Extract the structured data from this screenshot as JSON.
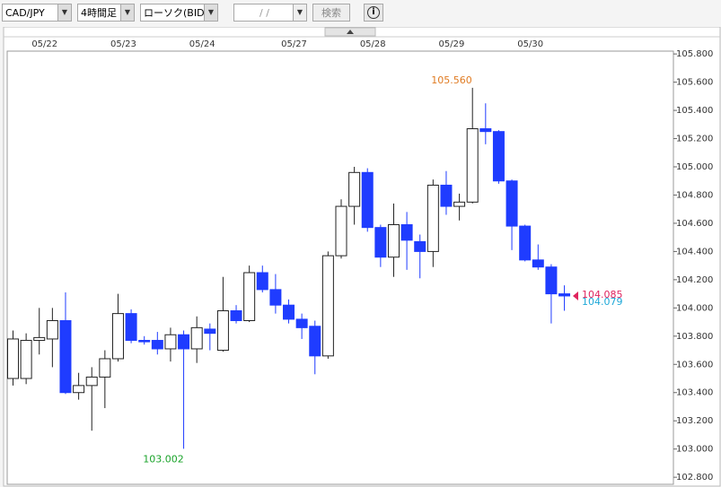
{
  "toolbar": {
    "pair": "CAD/JPY",
    "interval": "4時間足",
    "chart_kind": "ローソク(BID)",
    "date": "/  /",
    "search": "検索"
  },
  "chart_data": {
    "type": "candlestick",
    "categories": [
      null,
      null,
      "05/22",
      null,
      null,
      null,
      null,
      null,
      "05/23",
      null,
      null,
      null,
      null,
      null,
      "05/24",
      null,
      null,
      null,
      null,
      null,
      null,
      "05/27",
      null,
      null,
      null,
      null,
      null,
      "05/28",
      null,
      null,
      null,
      null,
      null,
      "05/29",
      null,
      null,
      null,
      null,
      null,
      "05/30",
      null,
      null,
      null
    ],
    "open": [
      103.5,
      103.5,
      103.77,
      103.78,
      103.91,
      103.4,
      103.45,
      103.51,
      103.64,
      103.96,
      103.77,
      103.77,
      103.71,
      103.81,
      103.71,
      103.85,
      103.7,
      103.98,
      103.91,
      104.25,
      104.13,
      104.02,
      103.92,
      103.87,
      103.66,
      104.37,
      104.72,
      104.96,
      104.57,
      104.36,
      104.59,
      104.47,
      104.4,
      104.87,
      104.72,
      104.75,
      105.27,
      105.25,
      104.9,
      104.58,
      104.34,
      104.29,
      104.1
    ],
    "high": [
      103.84,
      103.82,
      104.0,
      104.0,
      104.11,
      103.54,
      103.58,
      103.7,
      104.1,
      103.99,
      103.8,
      103.83,
      103.86,
      103.84,
      103.94,
      103.89,
      104.22,
      104.02,
      104.3,
      104.3,
      104.24,
      104.06,
      103.96,
      103.91,
      104.4,
      104.77,
      105.0,
      104.99,
      104.59,
      104.74,
      104.68,
      104.52,
      104.91,
      104.97,
      104.81,
      105.56,
      105.45,
      105.26,
      104.91,
      104.59,
      104.45,
      104.31,
      104.16
    ],
    "low": [
      103.45,
      103.46,
      103.67,
      103.58,
      103.39,
      103.35,
      103.13,
      103.29,
      103.62,
      103.75,
      103.74,
      103.67,
      103.62,
      103.002,
      103.61,
      103.7,
      103.69,
      103.89,
      103.9,
      104.11,
      103.96,
      103.89,
      103.78,
      103.53,
      103.64,
      104.35,
      104.59,
      104.54,
      104.29,
      104.22,
      104.27,
      104.21,
      104.29,
      104.66,
      104.62,
      104.74,
      105.16,
      104.88,
      104.41,
      104.33,
      104.27,
      103.89,
      103.98
    ],
    "close": [
      103.78,
      103.77,
      103.79,
      103.91,
      103.4,
      103.45,
      103.51,
      103.64,
      103.96,
      103.77,
      103.76,
      103.71,
      103.81,
      103.71,
      103.86,
      103.82,
      103.98,
      103.91,
      104.25,
      104.13,
      104.02,
      103.92,
      103.86,
      103.66,
      104.37,
      104.72,
      104.96,
      104.57,
      104.36,
      104.59,
      104.48,
      104.4,
      104.87,
      104.72,
      104.75,
      105.27,
      105.25,
      104.9,
      104.58,
      104.34,
      104.29,
      104.1,
      104.085
    ],
    "up_color": "#ffffff",
    "down_color": "#1f3cff",
    "ylim": [
      102.75,
      105.82
    ],
    "yticks": [
      {
        "value": 105.8,
        "label": "105.800"
      },
      {
        "value": 105.6,
        "label": "105.600"
      },
      {
        "value": 105.4,
        "label": "105.400"
      },
      {
        "value": 105.2,
        "label": "105.200"
      },
      {
        "value": 105.0,
        "label": "105.000"
      },
      {
        "value": 104.8,
        "label": "104.800"
      },
      {
        "value": 104.6,
        "label": "104.600"
      },
      {
        "value": 104.4,
        "label": "104.400"
      },
      {
        "value": 104.2,
        "label": "104.200"
      },
      {
        "value": 104.0,
        "label": "104.000"
      },
      {
        "value": 103.8,
        "label": "103.800"
      },
      {
        "value": 103.6,
        "label": "103.600"
      },
      {
        "value": 103.4,
        "label": "103.400"
      },
      {
        "value": 103.2,
        "label": "103.200"
      },
      {
        "value": 103.0,
        "label": "103.000"
      },
      {
        "value": 102.8,
        "label": "102.800"
      }
    ],
    "grid": false,
    "annotations": [
      {
        "value": 105.56,
        "label": "105.560",
        "color": "#e07b22"
      },
      {
        "value": 103.002,
        "label": "103.002",
        "color": "#1aa32a"
      },
      {
        "value": 104.085,
        "label": "104.085",
        "color": "#e0245e"
      },
      {
        "value": 104.079,
        "label": "104.079",
        "color": "#1ea8d8"
      }
    ]
  }
}
